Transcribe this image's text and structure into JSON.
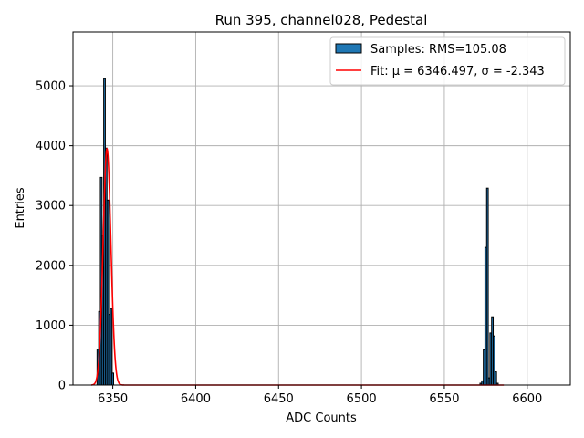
{
  "chart_data": {
    "type": "bar",
    "title": "Run 395, channel028, Pedestal",
    "xlabel": "ADC Counts",
    "ylabel": "Entries",
    "xlim": [
      6326,
      6626
    ],
    "ylim": [
      0,
      5900
    ],
    "grid": true,
    "legend_position": "top-right",
    "x_ticks": [
      6350,
      6400,
      6450,
      6500,
      6550,
      6600
    ],
    "y_ticks": [
      0,
      1000,
      2000,
      3000,
      4000,
      5000
    ],
    "histogram": {
      "name": "Samples: RMS=105.08",
      "bin_width": 1,
      "color": "#1f77b4",
      "edge_color": "#000000",
      "bins": [
        {
          "x": 6341,
          "count": 600
        },
        {
          "x": 6342,
          "count": 1230
        },
        {
          "x": 6343,
          "count": 3470
        },
        {
          "x": 6344,
          "count": 2500
        },
        {
          "x": 6345,
          "count": 5120
        },
        {
          "x": 6346,
          "count": 3960
        },
        {
          "x": 6347,
          "count": 3090
        },
        {
          "x": 6348,
          "count": 1180
        },
        {
          "x": 6349,
          "count": 1280
        },
        {
          "x": 6350,
          "count": 200
        },
        {
          "x": 6572,
          "count": 30
        },
        {
          "x": 6573,
          "count": 70
        },
        {
          "x": 6574,
          "count": 590
        },
        {
          "x": 6575,
          "count": 2300
        },
        {
          "x": 6576,
          "count": 3290
        },
        {
          "x": 6577,
          "count": 120
        },
        {
          "x": 6578,
          "count": 870
        },
        {
          "x": 6579,
          "count": 1140
        },
        {
          "x": 6580,
          "count": 820
        },
        {
          "x": 6581,
          "count": 220
        },
        {
          "x": 6582,
          "count": 30
        }
      ]
    },
    "fit": {
      "label": "Fit: μ = 6346.497, σ = -2.343",
      "type": "gaussian",
      "mu": 6346.497,
      "sigma": -2.343,
      "amplitude": 3950,
      "color": "#ff0000",
      "x_range": [
        6337,
        6586
      ]
    }
  }
}
